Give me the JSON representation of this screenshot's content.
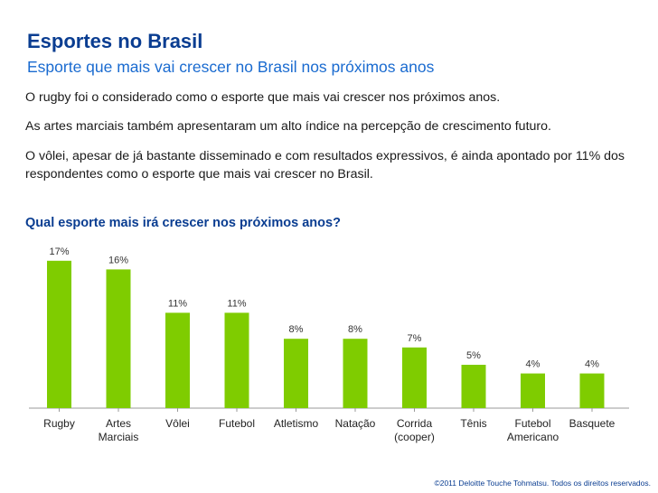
{
  "header": {
    "title": "Esportes no Brasil",
    "subtitle": "Esporte que mais vai crescer no Brasil nos próximos anos"
  },
  "paragraphs": [
    "O rugby foi o considerado como o esporte que mais vai crescer nos próximos anos.",
    "As artes marciais também apresentaram um alto índice na percepção de crescimento futuro.",
    "O vôlei, apesar de já bastante disseminado e com resultados expressivos, é ainda apontado por 11% dos respondentes como o esporte que mais vai crescer no Brasil."
  ],
  "colors": {
    "bar": "#7fcc00",
    "title": "#0a3d91",
    "subtitle": "#1a6bd0",
    "axis": "#9a9a9a"
  },
  "chart_data": {
    "type": "bar",
    "title": "Qual esporte mais irá crescer nos próximos anos?",
    "categories": [
      [
        "Rugby"
      ],
      [
        "Artes",
        "Marciais"
      ],
      [
        "Vôlei"
      ],
      [
        "Futebol"
      ],
      [
        "Atletismo"
      ],
      [
        "Natação"
      ],
      [
        "Corrida",
        "(cooper)"
      ],
      [
        "Tênis"
      ],
      [
        "Futebol",
        "Americano"
      ],
      [
        "Basquete"
      ]
    ],
    "values": [
      17,
      16,
      11,
      11,
      8,
      8,
      7,
      5,
      4,
      4
    ],
    "labels": [
      "17%",
      "16%",
      "11%",
      "11%",
      "8%",
      "8%",
      "7%",
      "5%",
      "4%",
      "4%"
    ],
    "ylim": [
      0,
      18
    ],
    "xlabel": "",
    "ylabel": "",
    "grid": false,
    "legend": "none"
  },
  "footer": {
    "copyright": "©2011 Deloitte Touche Tohmatsu. Todos os direitos reservados."
  }
}
